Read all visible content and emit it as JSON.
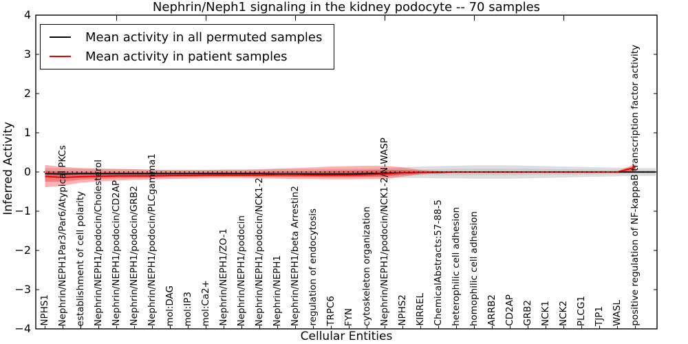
{
  "chart_data": {
    "type": "line",
    "title": "Nephrin/Neph1 signaling in the kidney podocyte -- 70 samples",
    "xlabel": "Cellular Entities",
    "ylabel": "Inferred Activity",
    "ylim": [
      -4,
      4
    ],
    "yticks": [
      4,
      3,
      2,
      1,
      0,
      -1,
      -2,
      -3,
      -4
    ],
    "ytick_labels": [
      "4",
      "3",
      "2",
      "1",
      "0",
      "−1",
      "−2",
      "−3",
      "−4"
    ],
    "grid": false,
    "legend_position": "upper left",
    "zero_line": {
      "y": 0,
      "style": "dotted",
      "color": "#000000"
    },
    "band_inner_scale": 0.5,
    "categories": [
      "NPHS1",
      "Nephrin/NEPH1Par3/Par6/Atypical PKCs",
      "establishment of cell polarity",
      "Nephrin/NEPH1/podocin/Cholesterol",
      "Nephrin/NEPH1/podocin/CD2AP",
      "Nephrin/NEPH1/podocin/GRB2",
      "Nephrin/NEPH1/podocin/PLCgamma1",
      "mol:DAG",
      "mol:IP3",
      "mol:Ca2+",
      "Nephrin/NEPH1/ZO-1",
      "Nephrin/NEPH1/podocin",
      "Nephrin/NEPH1/podocin/NCK1-2",
      "Nephrin/NEPH1",
      "Nephrin/NEPH1/beta Arrestin2",
      "regulation of endocytosis",
      "TRPC6",
      "FYN",
      "cytoskeleton organization",
      "Nephrin/NEPH1/podocin/NCK1-2/N-WASP",
      "NPHS2",
      "KIRREL",
      "ChemicalAbstracts:57-88-5",
      "heterophilic cell adhesion",
      "homophilic cell adhesion",
      "ARRB2",
      "CD2AP",
      "GRB2",
      "NCK1",
      "NCK2",
      "PLCG1",
      "TJP1",
      "WASL",
      "positive regulation of NF-kappaB transcription factor activity"
    ],
    "series": [
      {
        "name": "Mean activity in all permuted samples",
        "color": "#000000",
        "band_color": "rgba(0,0,0,0.13)",
        "band_inner_color": "rgba(0,0,0,0.08)",
        "values": [
          -0.04,
          -0.05,
          -0.04,
          -0.04,
          -0.04,
          -0.04,
          -0.04,
          -0.04,
          -0.04,
          -0.04,
          -0.04,
          -0.04,
          -0.04,
          -0.05,
          -0.05,
          -0.05,
          -0.05,
          -0.05,
          -0.04,
          -0.03,
          -0.02,
          -0.01,
          -0.01,
          0,
          0,
          0,
          0,
          0,
          0,
          0,
          0,
          0,
          0,
          0
        ],
        "band_upper": [
          0.1,
          0.09,
          0.08,
          0.07,
          0.07,
          0.07,
          0.06,
          0.06,
          0.06,
          0.06,
          0.06,
          0.06,
          0.06,
          0.07,
          0.07,
          0.07,
          0.08,
          0.08,
          0.08,
          0.09,
          0.12,
          0.14,
          0.15,
          0.16,
          0.17,
          0.17,
          0.17,
          0.16,
          0.15,
          0.14,
          0.13,
          0.12,
          0.11,
          0.1
        ],
        "band_lower": [
          -0.16,
          -0.15,
          -0.14,
          -0.14,
          -0.13,
          -0.13,
          -0.13,
          -0.12,
          -0.12,
          -0.12,
          -0.12,
          -0.12,
          -0.12,
          -0.13,
          -0.13,
          -0.13,
          -0.13,
          -0.13,
          -0.13,
          -0.14,
          -0.15,
          -0.15,
          -0.16,
          -0.16,
          -0.17,
          -0.17,
          -0.17,
          -0.16,
          -0.15,
          -0.14,
          -0.13,
          -0.12,
          -0.11,
          -0.1
        ],
        "extend_to_right_edge": true
      },
      {
        "name": "Mean activity in patient samples",
        "color": "#e60000",
        "band_color": "rgba(255,0,0,0.30)",
        "band_inner_color": "rgba(220,0,0,0.30)",
        "values": [
          -0.11,
          -0.14,
          -0.12,
          -0.11,
          -0.1,
          -0.1,
          -0.1,
          -0.09,
          -0.09,
          -0.08,
          -0.08,
          -0.08,
          -0.08,
          -0.07,
          -0.07,
          -0.08,
          -0.08,
          -0.08,
          -0.07,
          -0.05,
          -0.02,
          -0.01,
          0,
          0,
          0,
          0,
          0,
          0,
          0,
          0,
          0,
          0,
          0,
          0.12
        ],
        "band_upper": [
          0.18,
          0.13,
          0.1,
          0.09,
          0.08,
          0.07,
          0.06,
          0.05,
          0.05,
          0.05,
          0.06,
          0.06,
          0.07,
          0.09,
          0.1,
          0.12,
          0.14,
          0.15,
          0.16,
          0.16,
          0.12,
          0.05,
          0.02,
          0.01,
          0.01,
          0.01,
          0.01,
          0.01,
          0.01,
          0.01,
          0.01,
          0.01,
          0.02,
          0.21
        ],
        "band_lower": [
          -0.39,
          -0.35,
          -0.27,
          -0.24,
          -0.22,
          -0.2,
          -0.19,
          -0.18,
          -0.17,
          -0.16,
          -0.15,
          -0.15,
          -0.16,
          -0.17,
          -0.18,
          -0.18,
          -0.19,
          -0.19,
          -0.18,
          -0.18,
          -0.12,
          -0.06,
          -0.02,
          -0.01,
          -0.01,
          -0.01,
          -0.01,
          -0.01,
          -0.01,
          -0.01,
          -0.01,
          -0.01,
          -0.02,
          -0.01
        ],
        "extend_to_right_edge": false
      }
    ]
  }
}
